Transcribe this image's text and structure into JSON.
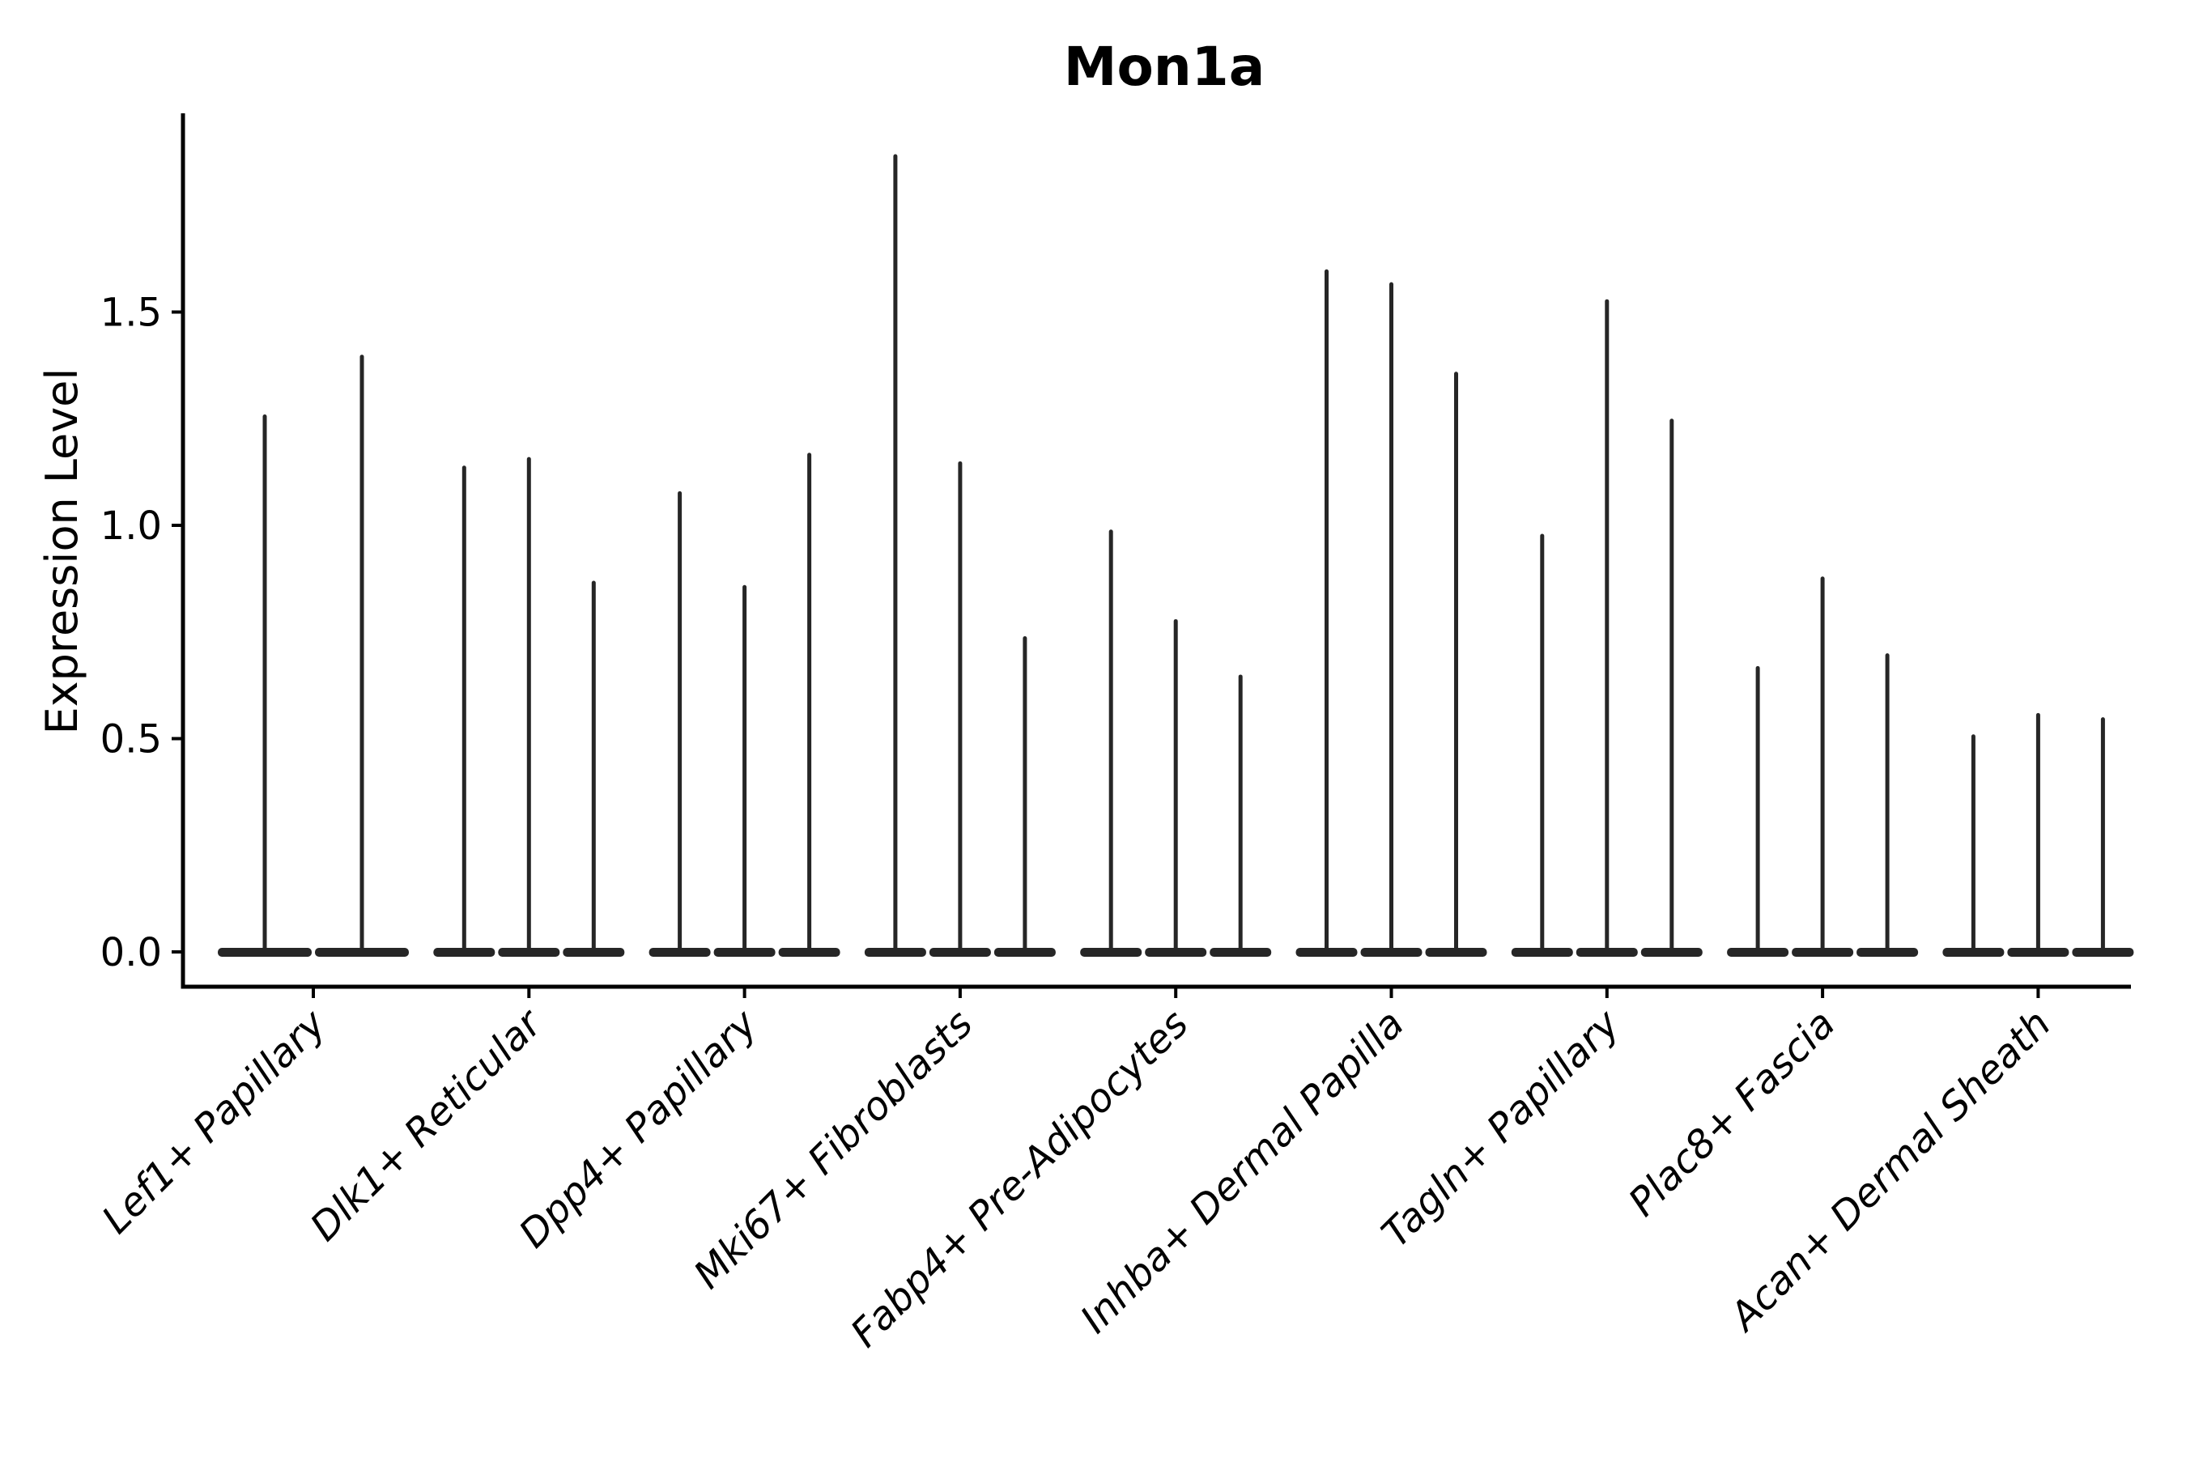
{
  "title": "Mon1a",
  "ylabel": "Expression Level",
  "ytick_labels": [
    "0.0",
    "0.5",
    "1.0",
    "1.5"
  ],
  "colors": {
    "violin": "#262626",
    "spine": "#000000",
    "text": "#000000",
    "background": "#ffffff"
  },
  "chart_data": {
    "type": "violin",
    "title": "Mon1a",
    "ylabel": "Expression Level",
    "xlabel": "",
    "ylim": [
      0,
      1.97
    ],
    "yticks": [
      0,
      0.5,
      1,
      1.5
    ],
    "grid": false,
    "legend": false,
    "description": "Thin spike-shaped violins; density mass concentrated at 0 (flat base bar) with a narrow spike up to the max expression value. Groups of violins per cell-type category.",
    "categories": [
      "Lef1+ Papillary",
      "Dlk1+ Reticular",
      "Dpp4+ Papillary",
      "Mki67+ Fibroblasts",
      "Fabp4+ Pre-Adipocytes",
      "Inhba+ Dermal Papilla",
      "Tagln+ Papillary",
      "Plac8+ Fascia",
      "Acan+ Dermal Sheath"
    ],
    "series": [
      {
        "category": "Lef1+ Papillary",
        "violin_max_values": [
          1.26,
          1.4
        ]
      },
      {
        "category": "Dlk1+ Reticular",
        "violin_max_values": [
          1.14,
          1.16,
          0.87
        ]
      },
      {
        "category": "Dpp4+ Papillary",
        "violin_max_values": [
          1.08,
          0.86,
          1.17
        ]
      },
      {
        "category": "Mki67+ Fibroblasts",
        "violin_max_values": [
          1.87,
          1.15,
          0.74
        ]
      },
      {
        "category": "Fabp4+ Pre-Adipocytes",
        "violin_max_values": [
          0.99,
          0.78,
          0.65
        ]
      },
      {
        "category": "Inhba+ Dermal Papilla",
        "violin_max_values": [
          1.6,
          1.57,
          1.36
        ]
      },
      {
        "category": "Tagln+ Papillary",
        "violin_max_values": [
          0.98,
          1.53,
          1.25
        ]
      },
      {
        "category": "Plac8+ Fascia",
        "violin_max_values": [
          0.67,
          0.88,
          0.7
        ]
      },
      {
        "category": "Acan+ Dermal Sheath",
        "violin_max_values": [
          0.51,
          0.56,
          0.55
        ]
      }
    ]
  }
}
